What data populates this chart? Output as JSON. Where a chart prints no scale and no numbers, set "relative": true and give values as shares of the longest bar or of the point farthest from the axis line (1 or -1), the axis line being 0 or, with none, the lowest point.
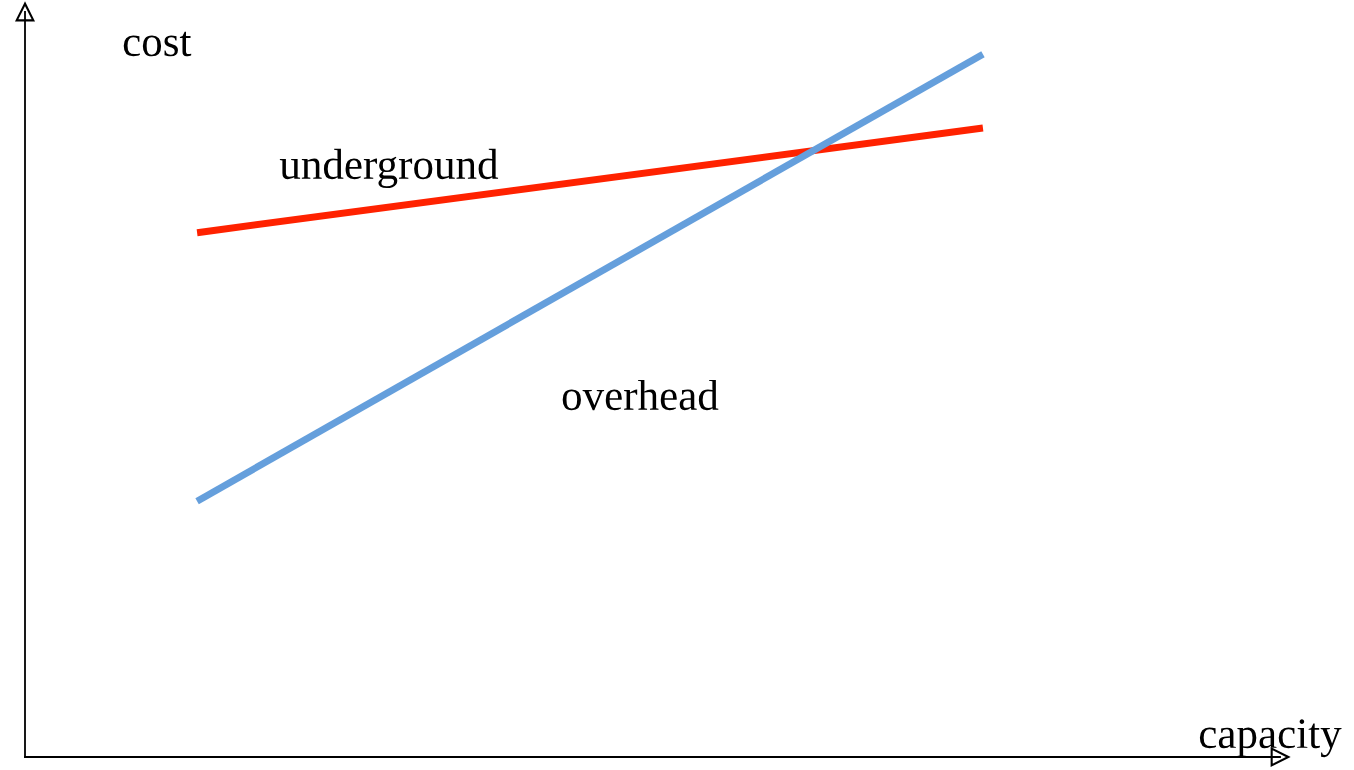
{
  "chart_data": {
    "type": "line",
    "relative": true,
    "xlabel": "capacity",
    "ylabel": "cost",
    "categories": [
      null,
      null
    ],
    "grid": false,
    "legend": false,
    "marker": "none",
    "line_style": "solid",
    "series": [
      {
        "name": "underground",
        "color": "#ff2200",
        "values": [
          0.746,
          0.895
        ]
      },
      {
        "name": "overhead",
        "color": "#659fdc",
        "values": [
          0.364,
          1.0
        ]
      }
    ]
  }
}
